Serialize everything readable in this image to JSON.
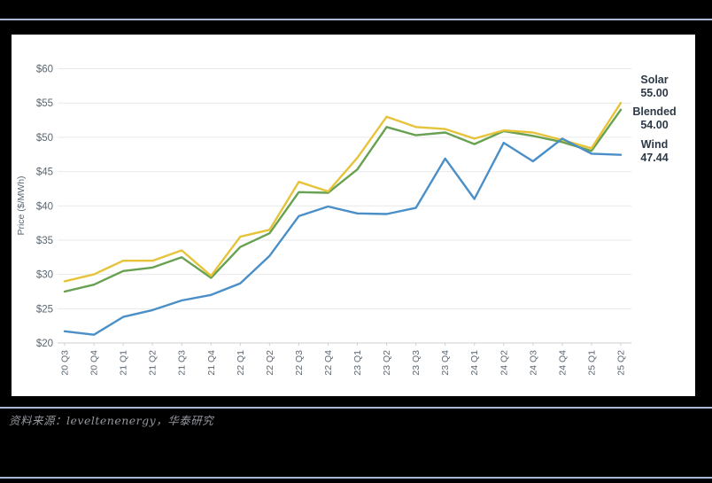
{
  "page": {
    "accent_rule_color": "#a9b8d4",
    "panel_bg": "#ffffff"
  },
  "chart_data": {
    "type": "line",
    "title": "",
    "ylabel": "Price ($/MWh)",
    "ylim": [
      20,
      60
    ],
    "ytick_step": 5,
    "ytick_prefix": "$",
    "grid": true,
    "legend_position": "right",
    "x_labels": [
      "20 Q3",
      "20 Q4",
      "21 Q1",
      "21 Q2",
      "21 Q3",
      "21 Q4",
      "22 Q1",
      "22 Q2",
      "22 Q3",
      "22 Q4",
      "23 Q1",
      "23 Q2",
      "23 Q3",
      "23 Q4",
      "24 Q1",
      "24 Q2",
      "24 Q3",
      "24 Q4",
      "25 Q1",
      "25 Q2"
    ],
    "series": [
      {
        "name": "Solar",
        "end_label": "55.00",
        "color": "#e7c33a",
        "values": [
          29.0,
          30.0,
          32.0,
          32.0,
          33.5,
          29.8,
          35.5,
          36.5,
          43.5,
          42.1,
          47.0,
          53.0,
          51.5,
          51.2,
          49.8,
          51.0,
          50.7,
          49.6,
          48.4,
          55.0
        ]
      },
      {
        "name": "Blended",
        "end_label": "54.00",
        "color": "#67a151",
        "values": [
          27.5,
          28.5,
          30.5,
          31.0,
          32.5,
          29.5,
          34.0,
          36.0,
          42.0,
          41.9,
          45.3,
          51.5,
          50.3,
          50.7,
          49.0,
          50.9,
          50.2,
          49.3,
          48.0,
          54.0
        ]
      },
      {
        "name": "Wind",
        "end_label": "47.44",
        "color": "#4a8fc7",
        "values": [
          21.7,
          21.2,
          23.8,
          24.8,
          26.2,
          27.0,
          28.7,
          32.7,
          38.5,
          39.9,
          38.9,
          38.8,
          39.7,
          46.9,
          41.0,
          49.2,
          46.5,
          49.8,
          47.6,
          47.44
        ]
      }
    ],
    "style": {
      "gridline_color": "#e9e9e9",
      "axis_line_color": "#cfcfcf",
      "tick_label_color": "#5c6670",
      "axis_title_color": "#5c6670"
    }
  },
  "footer": {
    "source_text": "资料来源：leveltenenergy，华泰研究"
  }
}
